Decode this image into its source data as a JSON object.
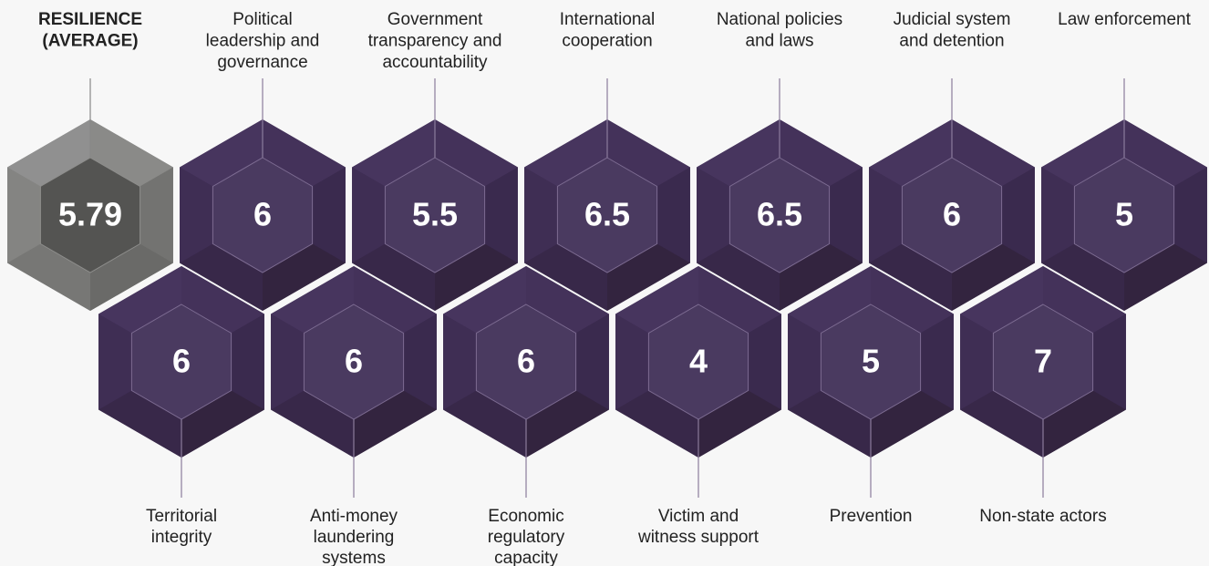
{
  "top_row": [
    {
      "label": [
        "RESILIENCE",
        "(AVERAGE)"
      ],
      "value": 5.79
    },
    {
      "label": [
        "Political",
        "leadership and",
        "governance"
      ],
      "value": 6
    },
    {
      "label": [
        "Government",
        "transparency and",
        "accountability"
      ],
      "value": 5.5
    },
    {
      "label": [
        "International",
        "cooperation"
      ],
      "value": 6.5
    },
    {
      "label": [
        "National policies",
        "and laws"
      ],
      "value": 6.5
    },
    {
      "label": [
        "Judicial system",
        "and detention"
      ],
      "value": 6
    },
    {
      "label": [
        "Law enforcement"
      ],
      "value": 5
    }
  ],
  "bottom_row": [
    {
      "label": [
        "Territorial",
        "integrity"
      ],
      "value": 6
    },
    {
      "label": [
        "Anti-money",
        "laundering",
        "systems"
      ],
      "value": 6
    },
    {
      "label": [
        "Economic",
        "regulatory",
        "capacity"
      ],
      "value": 6
    },
    {
      "label": [
        "Victim and",
        "witness support"
      ],
      "value": 4
    },
    {
      "label": [
        "Prevention"
      ],
      "value": 5
    },
    {
      "label": [
        "Non-state actors"
      ],
      "value": 7
    }
  ]
}
